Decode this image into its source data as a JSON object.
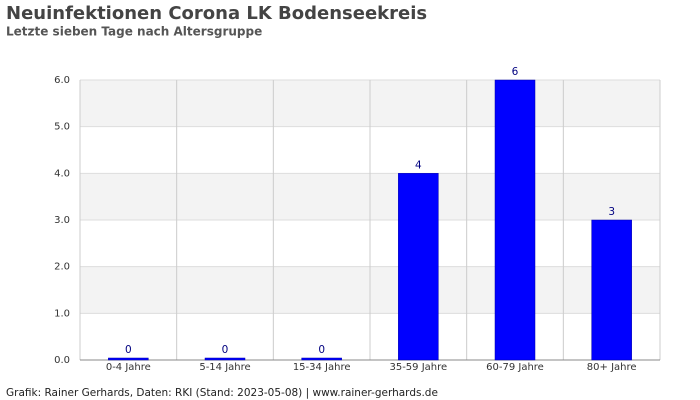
{
  "chart_data": {
    "type": "bar",
    "title": "Neuinfektionen Corona LK Bodenseekreis",
    "subtitle": "Letzte sieben Tage nach Altersgruppe",
    "categories": [
      "0-4 Jahre",
      "5-14 Jahre",
      "15-34 Jahre",
      "35-59 Jahre",
      "60-79 Jahre",
      "80+ Jahre"
    ],
    "values": [
      0,
      0,
      0,
      4,
      6,
      3
    ],
    "color": "#0000ff",
    "ylim": [
      0,
      6
    ],
    "yticks": [
      {
        "value": 0,
        "label": "0.0"
      },
      {
        "value": 1,
        "label": "1.0"
      },
      {
        "value": 2,
        "label": "2.0"
      },
      {
        "value": 3,
        "label": "3.0"
      },
      {
        "value": 4,
        "label": "4.0"
      },
      {
        "value": 5,
        "label": "5.0"
      },
      {
        "value": 6,
        "label": "6.0"
      }
    ],
    "grid": true,
    "footer": "Grafik: Rainer Gerhards, Daten: RKI (Stand: 2023-05-08) | www.rainer-gerhards.de"
  }
}
